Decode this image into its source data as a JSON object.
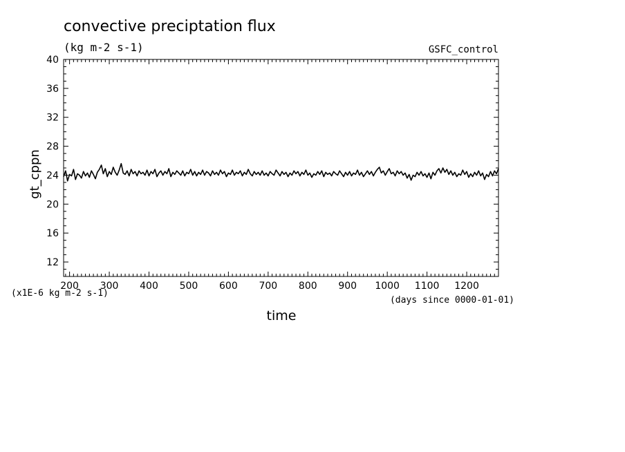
{
  "chart_data": {
    "type": "line",
    "title": "convective preciptation flux",
    "subtitle": "(kg m-2 s-1)",
    "annotation_right": "GSFC_control",
    "ylabel": "gt_cppn",
    "xlabel": "time",
    "yunit_note": "(x1E-6 kg m-2 s-1)",
    "xunit_note": "(days since 0000-01-01)",
    "xlim": [
      185,
      1280
    ],
    "ylim": [
      10,
      40
    ],
    "xticks": [
      200,
      300,
      400,
      500,
      600,
      700,
      800,
      900,
      1000,
      1100,
      1200
    ],
    "yticks": [
      12,
      16,
      20,
      24,
      28,
      32,
      36,
      40
    ],
    "grid": false,
    "series": [
      {
        "x_start": 185,
        "x_step": 5,
        "values": [
          23.8,
          24.6,
          23.2,
          24.1,
          23.9,
          24.8,
          23.4,
          24.2,
          24.0,
          23.6,
          24.5,
          23.9,
          24.3,
          23.7,
          24.6,
          24.1,
          23.5,
          24.4,
          24.8,
          25.4,
          24.2,
          24.9,
          23.8,
          24.5,
          24.1,
          25.1,
          24.4,
          24.0,
          24.7,
          25.6,
          24.3,
          24.1,
          24.6,
          23.9,
          24.8,
          24.2,
          24.5,
          23.9,
          24.6,
          24.2,
          24.4,
          24.0,
          24.7,
          23.9,
          24.5,
          24.2,
          24.8,
          23.8,
          24.3,
          24.6,
          24.0,
          24.5,
          24.2,
          24.9,
          23.8,
          24.4,
          24.1,
          24.6,
          24.3,
          24.0,
          24.6,
          23.9,
          24.4,
          24.2,
          24.8,
          24.0,
          24.5,
          23.9,
          24.4,
          24.1,
          24.7,
          24.0,
          24.5,
          24.3,
          23.9,
          24.6,
          24.1,
          24.4,
          24.0,
          24.7,
          24.2,
          24.5,
          23.8,
          24.3,
          24.1,
          24.7,
          24.0,
          24.4,
          24.2,
          24.6,
          23.9,
          24.4,
          24.1,
          24.8,
          24.2,
          23.9,
          24.5,
          24.1,
          24.4,
          24.0,
          24.6,
          24.0,
          24.3,
          23.9,
          24.5,
          24.2,
          24.0,
          24.7,
          24.3,
          23.9,
          24.5,
          24.1,
          24.4,
          23.8,
          24.3,
          24.0,
          24.6,
          24.2,
          24.5,
          23.9,
          24.4,
          24.1,
          24.7,
          24.0,
          24.3,
          23.7,
          24.2,
          24.0,
          24.5,
          24.1,
          24.6,
          23.8,
          24.4,
          24.1,
          24.3,
          23.9,
          24.5,
          24.2,
          24.0,
          24.6,
          24.2,
          23.8,
          24.4,
          24.0,
          24.5,
          23.9,
          24.3,
          24.1,
          24.7,
          24.0,
          24.4,
          23.8,
          24.2,
          24.6,
          24.1,
          24.5,
          23.9,
          24.4,
          24.8,
          25.1,
          24.3,
          24.6,
          24.0,
          24.5,
          24.9,
          24.2,
          24.4,
          23.9,
          24.6,
          24.2,
          24.5,
          24.0,
          24.3,
          23.6,
          24.1,
          23.3,
          24.0,
          23.8,
          24.4,
          24.0,
          24.5,
          23.9,
          24.2,
          23.7,
          24.3,
          23.5,
          24.4,
          24.0,
          24.6,
          24.9,
          24.3,
          25.0,
          24.4,
          24.8,
          24.1,
          24.6,
          24.0,
          24.4,
          23.8,
          24.2,
          24.0,
          24.7,
          24.1,
          24.5,
          23.7,
          24.2,
          23.8,
          24.4,
          24.0,
          24.6,
          23.9,
          24.3,
          23.4,
          24.1,
          23.8,
          24.5,
          23.9,
          24.6,
          24.2,
          24.9
        ]
      }
    ]
  }
}
